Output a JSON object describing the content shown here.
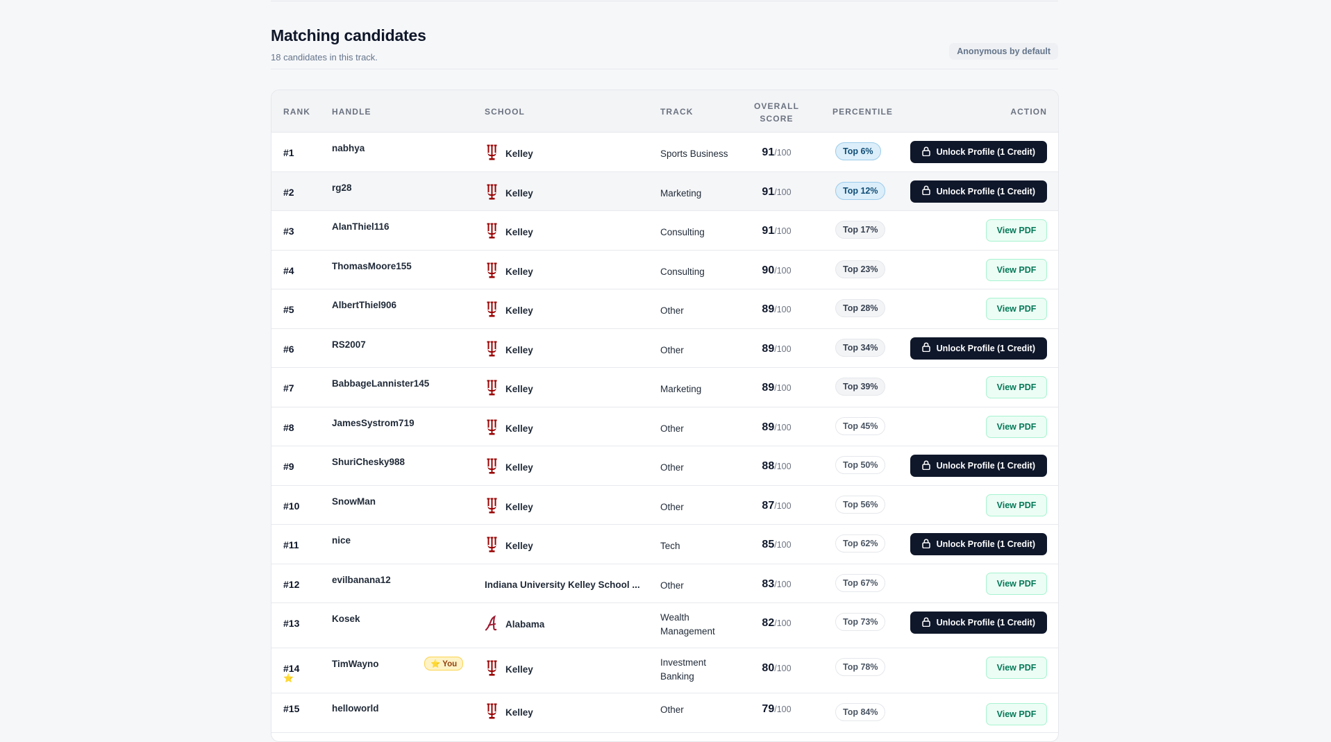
{
  "header": {
    "title": "Matching candidates",
    "subtitle": "18 candidates in this track.",
    "anon_badge": "Anonymous by default"
  },
  "table": {
    "columns": {
      "rank": "RANK",
      "handle": "HANDLE",
      "school": "SCHOOL",
      "track": "TRACK",
      "score_line1": "OVERALL",
      "score_line2": "SCORE",
      "percentile": "PERCENTILE",
      "action": "ACTION"
    },
    "score_denominator": "/100",
    "unlock_label": "Unlock Profile (1 Credit)",
    "pdf_label": "View PDF",
    "you_label": "⭐ You",
    "star_glyph": "⭐",
    "rows": [
      {
        "rank": "#1",
        "handle": "nabhya",
        "school": "Kelley",
        "track": "Sports Business",
        "score": "91",
        "pct": "Top 6%",
        "action": "unlock"
      },
      {
        "rank": "#2",
        "handle": "rg28",
        "school": "Kelley",
        "track": "Marketing",
        "score": "91",
        "pct": "Top 12%",
        "action": "unlock"
      },
      {
        "rank": "#3",
        "handle": "AlanThiel116",
        "school": "Kelley",
        "track": "Consulting",
        "score": "91",
        "pct": "Top 17%",
        "action": "pdf"
      },
      {
        "rank": "#4",
        "handle": "ThomasMoore155",
        "school": "Kelley",
        "track": "Consulting",
        "score": "90",
        "pct": "Top 23%",
        "action": "pdf"
      },
      {
        "rank": "#5",
        "handle": "AlbertThiel906",
        "school": "Kelley",
        "track": "Other",
        "score": "89",
        "pct": "Top 28%",
        "action": "pdf"
      },
      {
        "rank": "#6",
        "handle": "RS2007",
        "school": "Kelley",
        "track": "Other",
        "score": "89",
        "pct": "Top 34%",
        "action": "unlock"
      },
      {
        "rank": "#7",
        "handle": "BabbageLannister145",
        "school": "Kelley",
        "track": "Marketing",
        "score": "89",
        "pct": "Top 39%",
        "action": "pdf"
      },
      {
        "rank": "#8",
        "handle": "JamesSystrom719",
        "school": "Kelley",
        "track": "Other",
        "score": "89",
        "pct": "Top 45%",
        "action": "pdf"
      },
      {
        "rank": "#9",
        "handle": "ShuriChesky988",
        "school": "Kelley",
        "track": "Other",
        "score": "88",
        "pct": "Top 50%",
        "action": "unlock"
      },
      {
        "rank": "#10",
        "handle": "SnowMan",
        "school": "Kelley",
        "track": "Other",
        "score": "87",
        "pct": "Top 56%",
        "action": "pdf"
      },
      {
        "rank": "#11",
        "handle": "nice",
        "school": "Kelley",
        "track": "Tech",
        "score": "85",
        "pct": "Top 62%",
        "action": "unlock"
      },
      {
        "rank": "#12",
        "handle": "evilbanana12",
        "school": "Indiana University Kelley School ...",
        "track": "Other",
        "score": "83",
        "pct": "Top 67%",
        "action": "pdf"
      },
      {
        "rank": "#13",
        "handle": "Kosek",
        "school": "Alabama",
        "track": "Wealth Management",
        "score": "82",
        "pct": "Top 73%",
        "action": "unlock"
      },
      {
        "rank": "#14",
        "handle": "TimWayno",
        "school": "Kelley",
        "track": "Investment Banking",
        "score": "80",
        "pct": "Top 78%",
        "action": "pdf"
      },
      {
        "rank": "#15",
        "handle": "helloworld",
        "school": "Kelley",
        "track": "Other",
        "score": "79",
        "pct": "Top 84%",
        "action": "pdf"
      }
    ]
  },
  "colors": {
    "iu_crimson": "#990000",
    "alabama_crimson": "#9e1b32",
    "dark_button": "#0f172a",
    "pdf_green": "#047857"
  },
  "icons": {
    "school_kelley": "iu-trident-icon",
    "school_alabama": "alabama-script-a-icon",
    "lock": "lock-icon"
  }
}
